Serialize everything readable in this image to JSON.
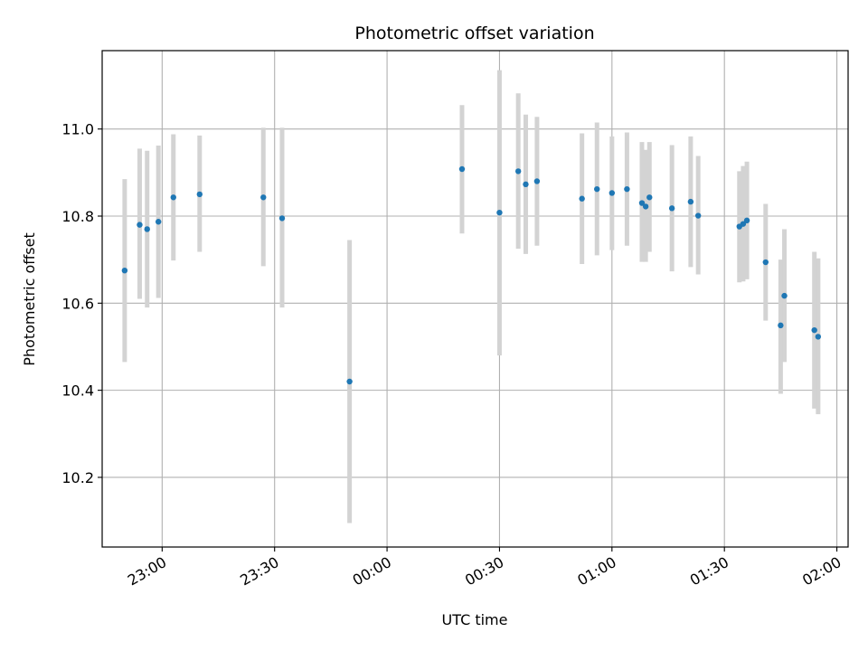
{
  "chart_data": {
    "type": "scatter",
    "title": "Photometric offset variation",
    "xlabel": "UTC time",
    "ylabel": "Photometric offset",
    "grid": true,
    "x_axis": {
      "type": "time",
      "range": [
        "22:44",
        "02:03"
      ],
      "ticks": [
        "23:00",
        "23:30",
        "00:00",
        "00:30",
        "01:00",
        "01:30",
        "02:00"
      ],
      "tick_label_rotation_deg": 30
    },
    "y_axis": {
      "range": [
        10.04,
        11.18
      ],
      "ticks": [
        10.2,
        10.4,
        10.6,
        10.8,
        11.0
      ],
      "tick_labels": [
        "10.2",
        "10.4",
        "10.6",
        "10.8",
        "11.0"
      ]
    },
    "colors": {
      "points": "#1f77b4",
      "errorbars": "#d3d3d3",
      "grid": "#b0b0b0"
    },
    "series": [
      {
        "points": [
          {
            "x": "22:50",
            "y": 10.675,
            "ylo": 10.465,
            "yhi": 10.885
          },
          {
            "x": "22:54",
            "y": 10.78,
            "ylo": 10.61,
            "yhi": 10.955
          },
          {
            "x": "22:56",
            "y": 10.77,
            "ylo": 10.59,
            "yhi": 10.95
          },
          {
            "x": "22:59",
            "y": 10.787,
            "ylo": 10.612,
            "yhi": 10.962
          },
          {
            "x": "23:03",
            "y": 10.843,
            "ylo": 10.698,
            "yhi": 10.988
          },
          {
            "x": "23:10",
            "y": 10.85,
            "ylo": 10.718,
            "yhi": 10.985
          },
          {
            "x": "23:27",
            "y": 10.843,
            "ylo": 10.685,
            "yhi": 11.003
          },
          {
            "x": "23:32",
            "y": 10.795,
            "ylo": 10.59,
            "yhi": 11.003
          },
          {
            "x": "23:50",
            "y": 10.42,
            "ylo": 10.095,
            "yhi": 10.745
          },
          {
            "x": "00:20",
            "y": 10.908,
            "ylo": 10.76,
            "yhi": 11.055
          },
          {
            "x": "00:30",
            "y": 10.808,
            "ylo": 10.48,
            "yhi": 11.135
          },
          {
            "x": "00:35",
            "y": 10.903,
            "ylo": 10.725,
            "yhi": 11.082
          },
          {
            "x": "00:37",
            "y": 10.873,
            "ylo": 10.713,
            "yhi": 11.033
          },
          {
            "x": "00:40",
            "y": 10.88,
            "ylo": 10.732,
            "yhi": 11.028
          },
          {
            "x": "00:52",
            "y": 10.84,
            "ylo": 10.69,
            "yhi": 10.99
          },
          {
            "x": "00:56",
            "y": 10.862,
            "ylo": 10.71,
            "yhi": 11.015
          },
          {
            "x": "01:00",
            "y": 10.853,
            "ylo": 10.722,
            "yhi": 10.983
          },
          {
            "x": "01:04",
            "y": 10.862,
            "ylo": 10.732,
            "yhi": 10.992
          },
          {
            "x": "01:08",
            "y": 10.83,
            "ylo": 10.695,
            "yhi": 10.97
          },
          {
            "x": "01:09",
            "y": 10.822,
            "ylo": 10.695,
            "yhi": 10.952
          },
          {
            "x": "01:10",
            "y": 10.843,
            "ylo": 10.718,
            "yhi": 10.97
          },
          {
            "x": "01:16",
            "y": 10.818,
            "ylo": 10.673,
            "yhi": 10.963
          },
          {
            "x": "01:21",
            "y": 10.833,
            "ylo": 10.683,
            "yhi": 10.983
          },
          {
            "x": "01:23",
            "y": 10.801,
            "ylo": 10.666,
            "yhi": 10.938
          },
          {
            "x": "01:34",
            "y": 10.776,
            "ylo": 10.648,
            "yhi": 10.903
          },
          {
            "x": "01:35",
            "y": 10.782,
            "ylo": 10.65,
            "yhi": 10.915
          },
          {
            "x": "01:36",
            "y": 10.79,
            "ylo": 10.655,
            "yhi": 10.925
          },
          {
            "x": "01:41",
            "y": 10.694,
            "ylo": 10.56,
            "yhi": 10.828
          },
          {
            "x": "01:45",
            "y": 10.549,
            "ylo": 10.392,
            "yhi": 10.7
          },
          {
            "x": "01:46",
            "y": 10.617,
            "ylo": 10.465,
            "yhi": 10.77
          },
          {
            "x": "01:54",
            "y": 10.538,
            "ylo": 10.358,
            "yhi": 10.718
          },
          {
            "x": "01:55",
            "y": 10.523,
            "ylo": 10.345,
            "yhi": 10.703
          }
        ]
      }
    ]
  }
}
